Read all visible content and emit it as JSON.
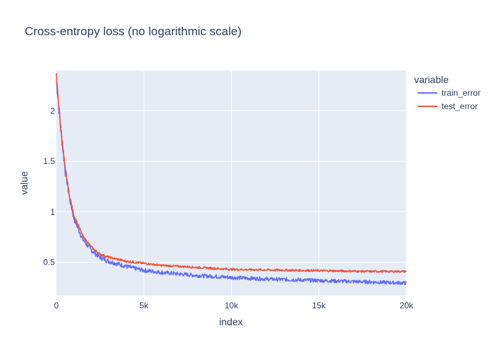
{
  "chart_data": {
    "type": "line",
    "title": "Cross-entropy loss (no logarithmic scale)",
    "xlabel": "index",
    "ylabel": "value",
    "xlim": [
      0,
      20000
    ],
    "ylim": [
      0.17,
      2.4
    ],
    "x_ticks": [
      0,
      5000,
      10000,
      15000,
      20000
    ],
    "x_tick_labels": [
      "0",
      "5k",
      "10k",
      "15k",
      "20k"
    ],
    "y_ticks": [
      0.5,
      1,
      1.5,
      2
    ],
    "y_tick_labels": [
      "0.5",
      "1",
      "1.5",
      "2"
    ],
    "grid": true,
    "legend": {
      "title": "variable",
      "placement": "top-right"
    },
    "x": [
      0,
      250,
      500,
      750,
      1000,
      1500,
      2000,
      2500,
      3000,
      4000,
      5000,
      6000,
      7000,
      8000,
      10000,
      12000,
      14000,
      16000,
      18000,
      20000
    ],
    "series": [
      {
        "name": "train_error",
        "color": "#636efa",
        "noise": 0.025,
        "values": [
          2.33,
          1.82,
          1.42,
          1.14,
          0.94,
          0.73,
          0.62,
          0.55,
          0.51,
          0.46,
          0.42,
          0.4,
          0.385,
          0.37,
          0.35,
          0.335,
          0.325,
          0.315,
          0.305,
          0.295
        ]
      },
      {
        "name": "test_error",
        "color": "#ef553b",
        "noise": 0.012,
        "values": [
          2.35,
          1.84,
          1.43,
          1.16,
          0.97,
          0.76,
          0.65,
          0.58,
          0.55,
          0.51,
          0.49,
          0.47,
          0.46,
          0.45,
          0.43,
          0.425,
          0.42,
          0.415,
          0.41,
          0.41
        ]
      }
    ]
  }
}
